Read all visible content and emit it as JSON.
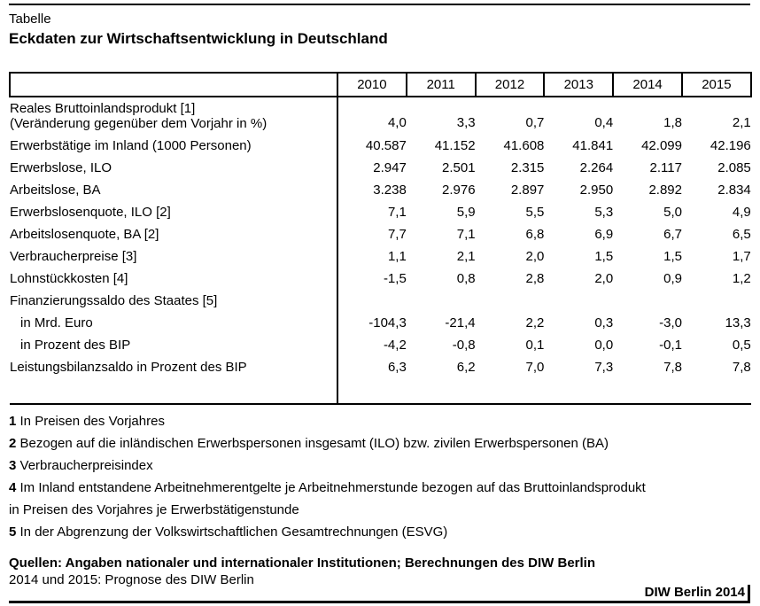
{
  "header": {
    "kicker": "Tabelle",
    "title": "Eckdaten zur Wirtschaftsentwicklung in Deutschland"
  },
  "table": {
    "col_headers": [
      "2010",
      "2011",
      "2012",
      "2013",
      "2014",
      "2015"
    ],
    "rows": [
      {
        "label": "Reales Bruttoinlandsprodukt [1]",
        "label2": "(Veränderung gegenüber dem Vorjahr in %)",
        "two_line": true,
        "values": [
          "4,0",
          "3,3",
          "0,7",
          "0,4",
          "1,8",
          "2,1"
        ]
      },
      {
        "label": "Erwerbstätige im Inland (1000 Personen)",
        "values": [
          "40.587",
          "41.152",
          "41.608",
          "41.841",
          "42.099",
          "42.196"
        ]
      },
      {
        "label": "Erwerbslose, ILO",
        "values": [
          "2.947",
          "2.501",
          "2.315",
          "2.264",
          "2.117",
          "2.085"
        ]
      },
      {
        "label": "Arbeitslose, BA",
        "values": [
          "3.238",
          "2.976",
          "2.897",
          "2.950",
          "2.892",
          "2.834"
        ]
      },
      {
        "label": "Erwerbslosenquote, ILO [2]",
        "values": [
          "7,1",
          "5,9",
          "5,5",
          "5,3",
          "5,0",
          "4,9"
        ]
      },
      {
        "label": "Arbeitslosenquote, BA [2]",
        "values": [
          "7,7",
          "7,1",
          "6,8",
          "6,9",
          "6,7",
          "6,5"
        ]
      },
      {
        "label": "Verbraucherpreise [3]",
        "values": [
          "1,1",
          "2,1",
          "2,0",
          "1,5",
          "1,5",
          "1,7"
        ]
      },
      {
        "label": "Lohnstückkosten [4]",
        "values": [
          "-1,5",
          "0,8",
          "2,8",
          "2,0",
          "0,9",
          "1,2"
        ]
      },
      {
        "label": "Finanzierungssaldo des Staates [5]",
        "group": true,
        "values": [
          "",
          "",
          "",
          "",
          "",
          ""
        ]
      },
      {
        "label": "in Mrd. Euro",
        "indent": true,
        "values": [
          "-104,3",
          "-21,4",
          "2,2",
          "0,3",
          "-3,0",
          "13,3"
        ]
      },
      {
        "label": "in Prozent des BIP",
        "indent": true,
        "values": [
          "-4,2",
          "-0,8",
          "0,1",
          "0,0",
          "-0,1",
          "0,5"
        ]
      },
      {
        "label": "Leistungsbilanzsaldo in Prozent des BIP",
        "values": [
          "6,3",
          "6,2",
          "7,0",
          "7,3",
          "7,8",
          "7,8"
        ]
      }
    ]
  },
  "footnotes": [
    {
      "num": "1",
      "text": "In Preisen des Vorjahres"
    },
    {
      "num": "2",
      "text": "Bezogen auf die inländischen Erwerbspersonen insgesamt (ILO) bzw. zivilen Erwerbspersonen (BA)"
    },
    {
      "num": "3",
      "text": "Verbraucherpreisindex"
    },
    {
      "num": "4",
      "text": "Im Inland entstandene Arbeitnehmerentgelte je Arbeitnehmerstunde bezogen auf das Bruttoinlandsprodukt"
    },
    {
      "num": "",
      "text": "in Preisen des Vorjahres je Erwerbstätigenstunde"
    },
    {
      "num": "5",
      "text": "In der Abgrenzung der Volkswirtschaftlichen Gesamtrechnungen (ESVG)"
    }
  ],
  "source": {
    "quellen": "Quellen: Angaben nationaler und internationaler Institutionen; Berechnungen des DIW Berlin",
    "prognose": "2014 und 2015: Prognose des DIW Berlin",
    "signature": "DIW Berlin 2014"
  }
}
